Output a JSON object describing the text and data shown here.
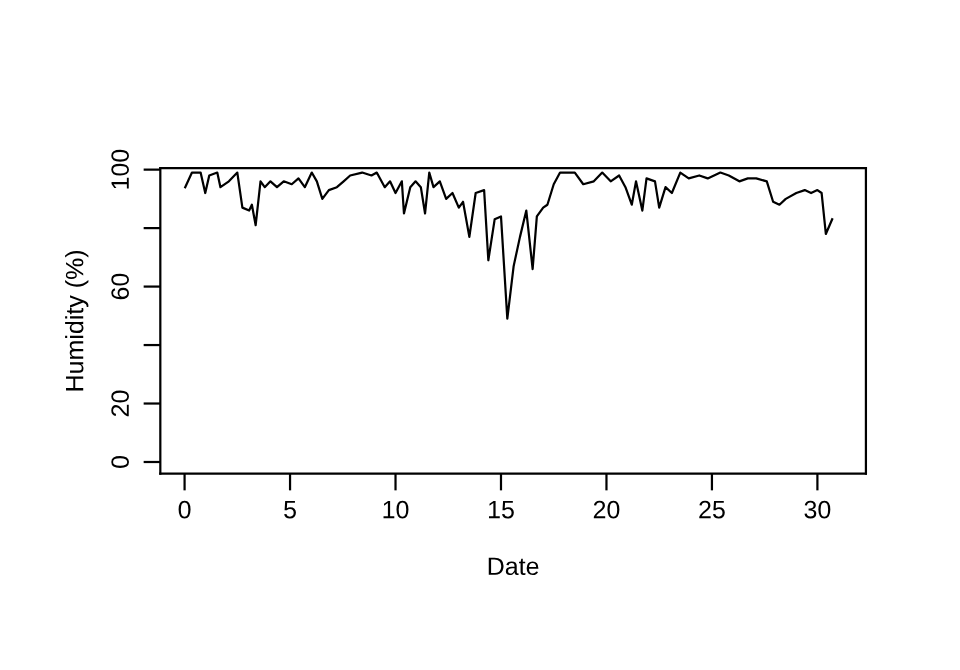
{
  "chart_data": {
    "type": "line",
    "xlabel": "Date",
    "ylabel": "Humidity (%)",
    "x": [
      0.03,
      0.35,
      0.76,
      0.98,
      1.17,
      1.55,
      1.7,
      2.1,
      2.5,
      2.74,
      3.06,
      3.19,
      3.37,
      3.6,
      3.8,
      4.07,
      4.38,
      4.7,
      5.08,
      5.4,
      5.7,
      6.03,
      6.27,
      6.53,
      6.84,
      7.22,
      7.54,
      7.85,
      8.42,
      8.86,
      9.11,
      9.49,
      9.74,
      10.0,
      10.3,
      10.4,
      10.7,
      10.95,
      11.2,
      11.4,
      11.6,
      11.8,
      12.1,
      12.4,
      12.7,
      13.0,
      13.2,
      13.5,
      13.8,
      14.2,
      14.4,
      14.7,
      15.0,
      15.3,
      15.6,
      15.9,
      16.2,
      16.5,
      16.7,
      17.0,
      17.2,
      17.5,
      17.8,
      18.5,
      18.9,
      19.4,
      19.8,
      20.2,
      20.6,
      20.9,
      21.2,
      21.4,
      21.7,
      21.9,
      22.3,
      22.5,
      22.8,
      23.1,
      23.5,
      23.9,
      24.4,
      24.8,
      25.4,
      25.8,
      26.3,
      26.7,
      27.1,
      27.6,
      27.9,
      28.2,
      28.5,
      29.0,
      29.4,
      29.7,
      30.0,
      30.2,
      30.4,
      30.7
    ],
    "series": [
      {
        "color": "#000000",
        "values": [
          94,
          99,
          99,
          92,
          98,
          99,
          94,
          96,
          99,
          87,
          86,
          88,
          81,
          96,
          94,
          96,
          94,
          96,
          95,
          97,
          94,
          99,
          96,
          90,
          93,
          94,
          96,
          98,
          99,
          98,
          99,
          94,
          96,
          92,
          96,
          85,
          94,
          96,
          94,
          85,
          99,
          94,
          96,
          90,
          92,
          87,
          89,
          77,
          92,
          93,
          69,
          83,
          84,
          49,
          67,
          77,
          86,
          66,
          84,
          87,
          88,
          95,
          99,
          99,
          95,
          96,
          99,
          96,
          98,
          94,
          88,
          96,
          86,
          97,
          96,
          87,
          94,
          92,
          99,
          97,
          98,
          97,
          99,
          98,
          96,
          97,
          97,
          96,
          89,
          88,
          90,
          92,
          93,
          92,
          93,
          92,
          78,
          83
        ]
      }
    ],
    "xlim": [
      -1.15,
      32.3
    ],
    "xticks": [
      0,
      5,
      10,
      15,
      20,
      25,
      30
    ],
    "ylim": [
      -4,
      100.5
    ],
    "yticks": [
      0,
      20,
      {
        "value": 40,
        "label": null
      },
      60,
      {
        "value": 80,
        "label": null
      },
      100
    ],
    "grid": false,
    "legend": false,
    "marker": "none",
    "line_style": "solid"
  }
}
